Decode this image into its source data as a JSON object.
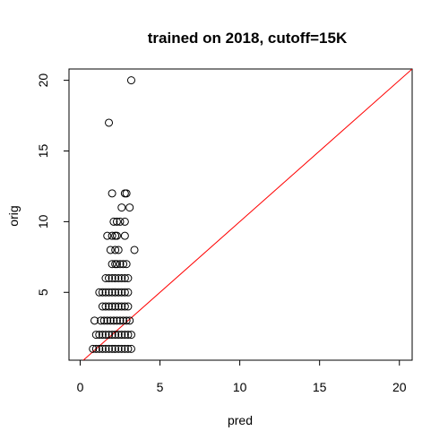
{
  "chart_data": {
    "type": "scatter",
    "title": "trained on 2018, cutoff=15K",
    "xlabel": "pred",
    "ylabel": "orig",
    "xlim": [
      -0.7,
      20.8
    ],
    "ylim": [
      0.2,
      20.8
    ],
    "xticks": [
      0,
      5,
      10,
      15,
      20
    ],
    "yticks": [
      5,
      10,
      15,
      20
    ],
    "grid": false,
    "legend": "none",
    "reference_line": {
      "slope": 1,
      "intercept": 0,
      "color": "#ff0000"
    },
    "point_color": "#000000",
    "points": [
      [
        3.2,
        20
      ],
      [
        1.8,
        17
      ],
      [
        2.0,
        12
      ],
      [
        2.8,
        12
      ],
      [
        2.9,
        12
      ],
      [
        2.6,
        11
      ],
      [
        3.1,
        11
      ],
      [
        2.1,
        10
      ],
      [
        2.3,
        10
      ],
      [
        2.5,
        10
      ],
      [
        2.8,
        10
      ],
      [
        1.7,
        9
      ],
      [
        2.0,
        9
      ],
      [
        2.2,
        9
      ],
      [
        2.3,
        9
      ],
      [
        2.8,
        9
      ],
      [
        1.9,
        8
      ],
      [
        2.2,
        8
      ],
      [
        2.4,
        8
      ],
      [
        3.4,
        8
      ],
      [
        2.0,
        7
      ],
      [
        2.2,
        7
      ],
      [
        2.3,
        7
      ],
      [
        2.5,
        7
      ],
      [
        2.7,
        7
      ],
      [
        2.9,
        7
      ],
      [
        1.6,
        6
      ],
      [
        1.8,
        6
      ],
      [
        2.0,
        6
      ],
      [
        2.2,
        6
      ],
      [
        2.4,
        6
      ],
      [
        2.6,
        6
      ],
      [
        2.8,
        6
      ],
      [
        3.0,
        6
      ],
      [
        1.2,
        5
      ],
      [
        1.4,
        5
      ],
      [
        1.6,
        5
      ],
      [
        1.8,
        5
      ],
      [
        2.0,
        5
      ],
      [
        2.2,
        5
      ],
      [
        2.4,
        5
      ],
      [
        2.6,
        5
      ],
      [
        2.8,
        5
      ],
      [
        3.0,
        5
      ],
      [
        1.4,
        4
      ],
      [
        1.6,
        4
      ],
      [
        1.8,
        4
      ],
      [
        2.0,
        4
      ],
      [
        2.2,
        4
      ],
      [
        2.4,
        4
      ],
      [
        2.6,
        4
      ],
      [
        2.8,
        4
      ],
      [
        3.0,
        4
      ],
      [
        0.9,
        3
      ],
      [
        1.3,
        3
      ],
      [
        1.5,
        3
      ],
      [
        1.7,
        3
      ],
      [
        1.9,
        3
      ],
      [
        2.1,
        3
      ],
      [
        2.3,
        3
      ],
      [
        2.5,
        3
      ],
      [
        2.7,
        3
      ],
      [
        2.9,
        3
      ],
      [
        3.1,
        3
      ],
      [
        1.0,
        2
      ],
      [
        1.2,
        2
      ],
      [
        1.4,
        2
      ],
      [
        1.6,
        2
      ],
      [
        1.8,
        2
      ],
      [
        2.0,
        2
      ],
      [
        2.2,
        2
      ],
      [
        2.4,
        2
      ],
      [
        2.6,
        2
      ],
      [
        2.8,
        2
      ],
      [
        3.0,
        2
      ],
      [
        3.2,
        2
      ],
      [
        0.8,
        1
      ],
      [
        1.0,
        1
      ],
      [
        1.2,
        1
      ],
      [
        1.4,
        1
      ],
      [
        1.6,
        1
      ],
      [
        1.8,
        1
      ],
      [
        2.0,
        1
      ],
      [
        2.2,
        1
      ],
      [
        2.4,
        1
      ],
      [
        2.6,
        1
      ],
      [
        2.8,
        1
      ],
      [
        3.0,
        1
      ],
      [
        3.2,
        1
      ]
    ]
  }
}
